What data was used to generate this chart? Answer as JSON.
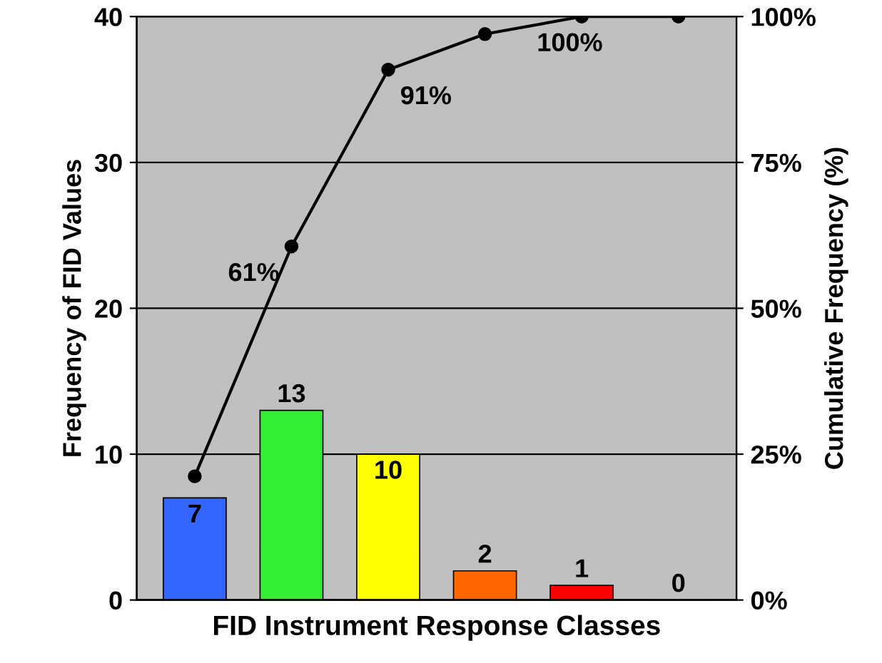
{
  "chart_data": {
    "type": "bar",
    "xlabel": "FID Instrument Response Classes",
    "ylabel": "Frequency of FID Values",
    "y2label": "Cumulative Frequency (%)",
    "categories": [
      null,
      null,
      null,
      null,
      null,
      null
    ],
    "series": [
      {
        "colors": [
          "#3366ff",
          "#33ee33",
          "#ffff00",
          "#ff6600",
          "#ff0000",
          "#999999"
        ],
        "values": [
          7,
          13,
          10,
          2,
          1,
          0
        ],
        "value_labels": [
          "7",
          "13",
          "10",
          "2",
          "1",
          "0"
        ]
      },
      {
        "type": "line",
        "axis": "y2",
        "color": "#000000",
        "marker": "circle",
        "values": [
          21.2,
          60.6,
          90.9,
          97.0,
          100,
          100
        ],
        "value_labels": [
          null,
          "61%",
          "91%",
          null,
          "100%",
          null
        ]
      }
    ],
    "ylim": [
      0,
      40
    ],
    "yticks": [
      0,
      10,
      20,
      30,
      40
    ],
    "y2lim": [
      0,
      100
    ],
    "y2ticks": [
      {
        "value": 0,
        "label": "0%"
      },
      {
        "value": 25,
        "label": "25%"
      },
      {
        "value": 50,
        "label": "50%"
      },
      {
        "value": 75,
        "label": "75%"
      },
      {
        "value": 100,
        "label": "100%"
      }
    ],
    "grid": "y"
  }
}
